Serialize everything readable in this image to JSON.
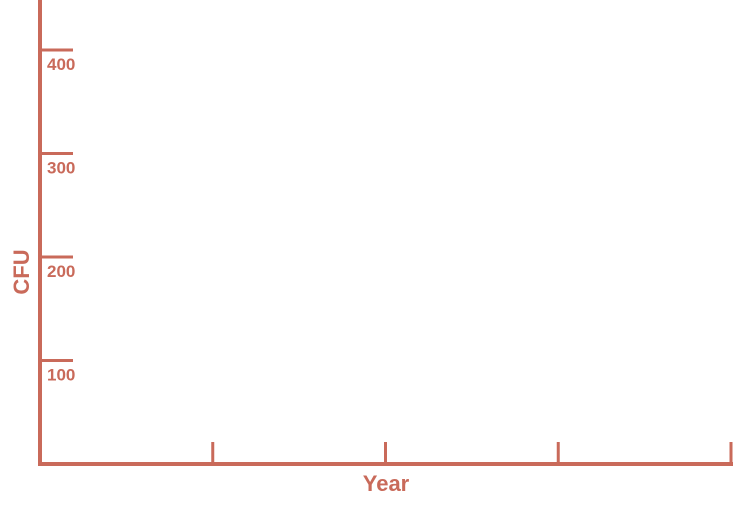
{
  "chart_data": {
    "type": "line",
    "xlabel": "Year",
    "ylabel": "CFU",
    "ylim": [
      0,
      450
    ],
    "y_ticks": [
      100,
      200,
      300,
      400
    ],
    "y_tick_labels": [
      "100",
      "200",
      "300",
      "400"
    ],
    "x_ticks": [
      1,
      2,
      3,
      4
    ],
    "x_tick_labels": [
      "",
      "",
      "",
      ""
    ],
    "xlim": [
      0,
      4
    ],
    "grid": false,
    "series": [],
    "color": "#c96a5a"
  }
}
